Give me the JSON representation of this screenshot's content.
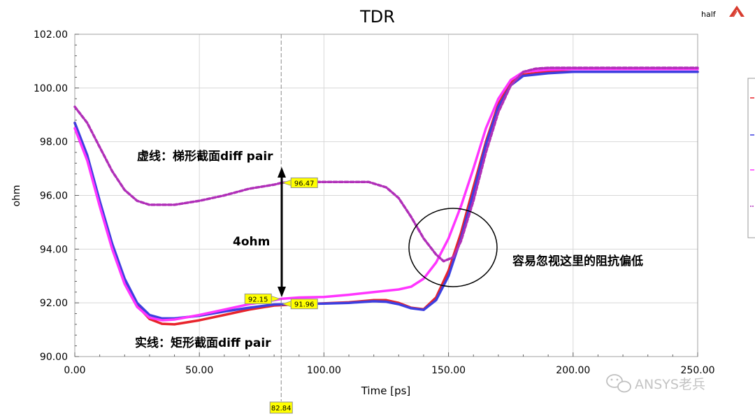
{
  "chart_data": {
    "type": "line",
    "title": "TDR",
    "corner_label": "half",
    "xlabel": "Time [ps]",
    "ylabel": "ohm",
    "xlim": [
      0,
      250
    ],
    "ylim": [
      90,
      102
    ],
    "grid": true,
    "xticks": [
      "0.00",
      "50.00",
      "100.00",
      "150.00",
      "200.00",
      "250.00"
    ],
    "yticks": [
      "90.00",
      "92.00",
      "94.00",
      "96.00",
      "98.00",
      "100.00",
      "102.00"
    ],
    "series": [
      {
        "color": "#e8242c",
        "dashed": false,
        "points": [
          [
            0,
            98.7
          ],
          [
            5,
            97.4
          ],
          [
            10,
            95.7
          ],
          [
            15,
            94.1
          ],
          [
            20,
            92.8
          ],
          [
            25,
            91.9
          ],
          [
            30,
            91.4
          ],
          [
            35,
            91.22
          ],
          [
            40,
            91.2
          ],
          [
            50,
            91.35
          ],
          [
            60,
            91.55
          ],
          [
            70,
            91.75
          ],
          [
            80,
            91.9
          ],
          [
            90,
            91.95
          ],
          [
            100,
            91.98
          ],
          [
            110,
            92.02
          ],
          [
            120,
            92.1
          ],
          [
            125,
            92.1
          ],
          [
            130,
            92.0
          ],
          [
            135,
            91.82
          ],
          [
            140,
            91.76
          ],
          [
            145,
            92.2
          ],
          [
            150,
            93.2
          ],
          [
            155,
            94.6
          ],
          [
            160,
            96.3
          ],
          [
            165,
            98.0
          ],
          [
            170,
            99.4
          ],
          [
            175,
            100.2
          ],
          [
            180,
            100.5
          ],
          [
            190,
            100.6
          ],
          [
            200,
            100.6
          ],
          [
            250,
            100.6
          ]
        ]
      },
      {
        "color": "#3d3fe0",
        "dashed": false,
        "points": [
          [
            0,
            98.7
          ],
          [
            5,
            97.5
          ],
          [
            10,
            95.8
          ],
          [
            15,
            94.2
          ],
          [
            20,
            92.9
          ],
          [
            25,
            92.0
          ],
          [
            30,
            91.55
          ],
          [
            35,
            91.42
          ],
          [
            40,
            91.42
          ],
          [
            50,
            91.52
          ],
          [
            60,
            91.68
          ],
          [
            70,
            91.82
          ],
          [
            80,
            91.94
          ],
          [
            90,
            91.96
          ],
          [
            100,
            91.97
          ],
          [
            110,
            92.0
          ],
          [
            120,
            92.06
          ],
          [
            125,
            92.04
          ],
          [
            130,
            91.95
          ],
          [
            135,
            91.8
          ],
          [
            140,
            91.74
          ],
          [
            145,
            92.1
          ],
          [
            150,
            93.0
          ],
          [
            155,
            94.4
          ],
          [
            160,
            96.1
          ],
          [
            165,
            97.9
          ],
          [
            170,
            99.3
          ],
          [
            175,
            100.1
          ],
          [
            180,
            100.45
          ],
          [
            190,
            100.55
          ],
          [
            200,
            100.6
          ],
          [
            250,
            100.6
          ]
        ]
      },
      {
        "color": "#ff35ff",
        "dashed": false,
        "points": [
          [
            0,
            98.5
          ],
          [
            5,
            97.3
          ],
          [
            10,
            95.6
          ],
          [
            15,
            94.0
          ],
          [
            20,
            92.7
          ],
          [
            25,
            91.85
          ],
          [
            30,
            91.45
          ],
          [
            35,
            91.35
          ],
          [
            40,
            91.38
          ],
          [
            50,
            91.55
          ],
          [
            60,
            91.75
          ],
          [
            70,
            91.95
          ],
          [
            80,
            92.1
          ],
          [
            83,
            92.15
          ],
          [
            90,
            92.2
          ],
          [
            100,
            92.22
          ],
          [
            110,
            92.3
          ],
          [
            120,
            92.4
          ],
          [
            130,
            92.5
          ],
          [
            135,
            92.6
          ],
          [
            140,
            92.9
          ],
          [
            145,
            93.5
          ],
          [
            150,
            94.4
          ],
          [
            155,
            95.6
          ],
          [
            160,
            97.0
          ],
          [
            165,
            98.5
          ],
          [
            170,
            99.6
          ],
          [
            175,
            100.3
          ],
          [
            180,
            100.6
          ],
          [
            190,
            100.68
          ],
          [
            200,
            100.7
          ],
          [
            250,
            100.7
          ]
        ]
      },
      {
        "color": "#b02fb8",
        "dashed": true,
        "points": [
          [
            0,
            99.3
          ],
          [
            5,
            98.7
          ],
          [
            10,
            97.8
          ],
          [
            15,
            96.9
          ],
          [
            20,
            96.2
          ],
          [
            25,
            95.8
          ],
          [
            30,
            95.65
          ],
          [
            40,
            95.65
          ],
          [
            50,
            95.8
          ],
          [
            60,
            96.0
          ],
          [
            70,
            96.25
          ],
          [
            80,
            96.4
          ],
          [
            83,
            96.47
          ],
          [
            90,
            96.5
          ],
          [
            100,
            96.5
          ],
          [
            110,
            96.5
          ],
          [
            118,
            96.5
          ],
          [
            125,
            96.3
          ],
          [
            130,
            95.9
          ],
          [
            135,
            95.2
          ],
          [
            140,
            94.4
          ],
          [
            145,
            93.8
          ],
          [
            148,
            93.55
          ],
          [
            152,
            93.7
          ],
          [
            155,
            94.3
          ],
          [
            160,
            95.8
          ],
          [
            165,
            97.6
          ],
          [
            170,
            99.1
          ],
          [
            175,
            100.1
          ],
          [
            180,
            100.6
          ],
          [
            185,
            100.72
          ],
          [
            190,
            100.75
          ],
          [
            200,
            100.75
          ],
          [
            250,
            100.75
          ]
        ]
      }
    ],
    "marker": {
      "x": 82.84,
      "x_label": "82.84",
      "labels": [
        {
          "text": "96.47",
          "y": 96.47,
          "side": "right"
        },
        {
          "text": "92.15",
          "y": 92.15,
          "side": "left"
        },
        {
          "text": "91.96",
          "y": 91.96,
          "side": "right"
        }
      ]
    },
    "annotations": {
      "dashed_note": "虚线：梯形截面diff pair",
      "solid_note": "实线：矩形截面diff pair",
      "delta_note": "4ohm",
      "circle_note": "容易忽视这里的阻抗偏低"
    },
    "watermark": "ANSYS老兵"
  }
}
